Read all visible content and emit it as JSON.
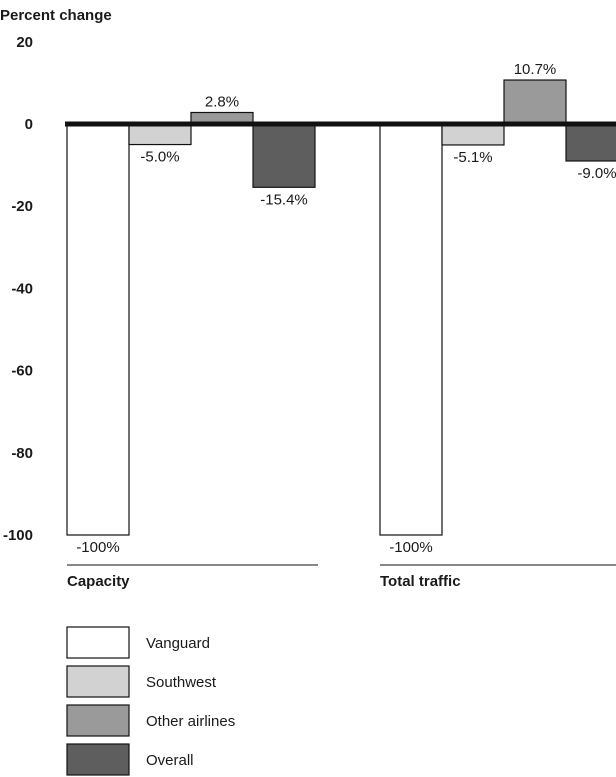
{
  "chart_data": {
    "type": "bar",
    "ylabel": "Percent change",
    "yticks": [
      20,
      0,
      -20,
      -40,
      -60,
      -80,
      -100
    ],
    "ylim": [
      -100,
      20
    ],
    "categories": [
      "Capacity",
      "Total traffic"
    ],
    "series": [
      {
        "name": "Vanguard",
        "color": "#ffffff",
        "values": [
          -100,
          -100
        ],
        "labels": [
          "-100%",
          "-100%"
        ]
      },
      {
        "name": "Southwest",
        "color": "#d2d2d2",
        "values": [
          -5.0,
          -5.1
        ],
        "labels": [
          "-5.0%",
          "-5.1%"
        ]
      },
      {
        "name": "Other airlines",
        "color": "#9a9a9a",
        "values": [
          2.8,
          10.7
        ],
        "labels": [
          "2.8%",
          "10.7%"
        ]
      },
      {
        "name": "Overall",
        "color": "#5e5e5e",
        "values": [
          -15.4,
          -9.0
        ],
        "labels": [
          "-15.4%",
          "-9.0%"
        ]
      }
    ],
    "legend": "bottom-left",
    "grid": false
  }
}
